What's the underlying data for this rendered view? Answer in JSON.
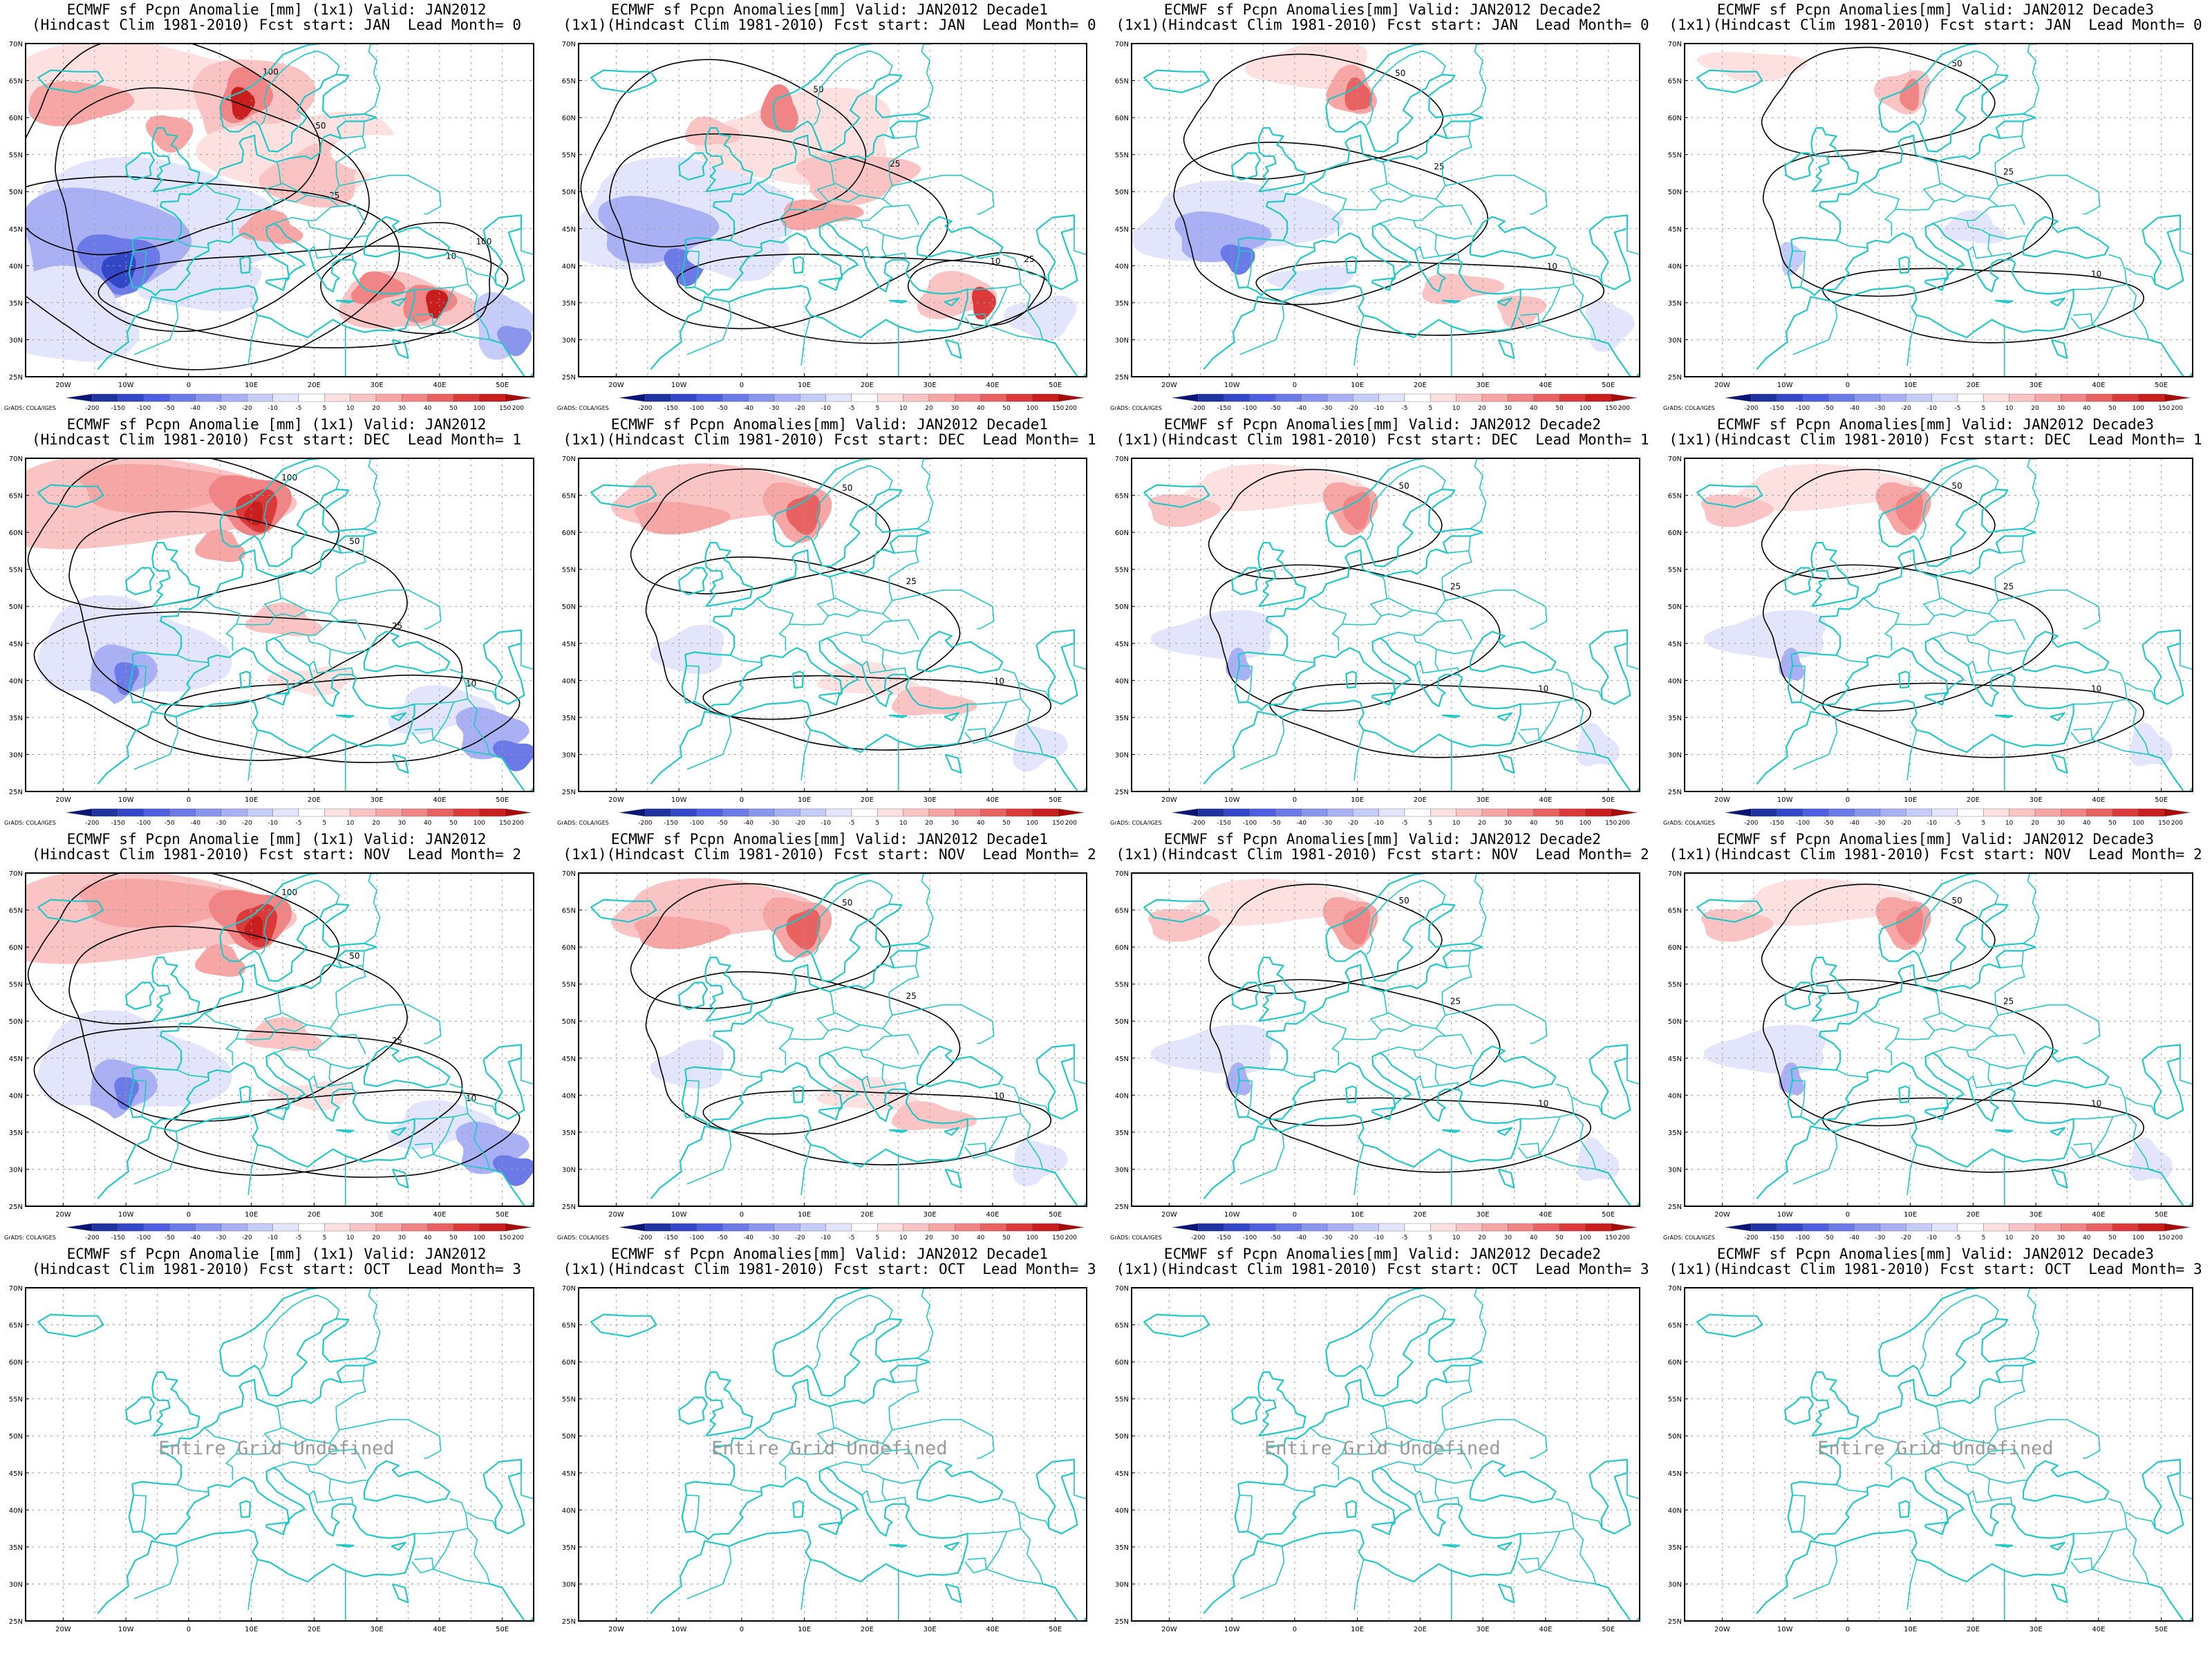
{
  "colorbar": {
    "labels": [
      "-200",
      "-150",
      "-100",
      "-50",
      "-40",
      "-30",
      "-20",
      "-10",
      "-5",
      "5",
      "10",
      "20",
      "30",
      "40",
      "50",
      "100",
      "150",
      "200"
    ],
    "colors": [
      "#0a1478",
      "#1e32a0",
      "#3246c8",
      "#4d5fe0",
      "#6c7ae8",
      "#8a96ee",
      "#a9b1f4",
      "#c6ccf8",
      "#e2e5fc",
      "#ffffff",
      "#fde0e0",
      "#fbc4c4",
      "#f7a6a6",
      "#f18484",
      "#e96262",
      "#dc3a3a",
      "#c81e1e",
      "#a80a0a"
    ],
    "credit": "GrADS: COLA/IGES"
  },
  "axes": {
    "lon_labels": [
      "20W",
      "10W",
      "0",
      "10E",
      "20E",
      "30E",
      "40E",
      "50E"
    ],
    "lat_labels": [
      "70N",
      "65N",
      "60N",
      "55N",
      "50N",
      "45N",
      "40N",
      "35N",
      "30N",
      "25N"
    ]
  },
  "colors": {
    "coast": "#20c8c8",
    "contour": "#000000",
    "grid": "#a0a0a0"
  },
  "undefined_text": "Entire Grid Undefined",
  "panels": [
    {
      "line1": "ECMWF sf Pcpn Anomalie [mm] (1x1) Valid: JAN2012",
      "line2": "(Hindcast Clim 1981-2010) Fcst start: JAN  Lead Month= 0",
      "fill": "strong_mixed"
    },
    {
      "line1": "ECMWF sf Pcpn Anomalies[mm] Valid: JAN2012 Decade1",
      "line2": "(1x1)(Hindcast Clim 1981-2010) Fcst start: JAN  Lead Month= 0",
      "fill": "mixed"
    },
    {
      "line1": "ECMWF sf Pcpn Anomalies[mm] Valid: JAN2012 Decade2",
      "line2": "(1x1)(Hindcast Clim 1981-2010) Fcst start: JAN  Lead Month= 0",
      "fill": "mixed_light"
    },
    {
      "line1": "ECMWF sf Pcpn Anomalies[mm] Valid: JAN2012 Decade3",
      "line2": "(1x1)(Hindcast Clim 1981-2010) Fcst start: JAN  Lead Month= 0",
      "fill": "light"
    },
    {
      "line1": "ECMWF sf Pcpn Anomalie [mm] (1x1) Valid: JAN2012",
      "line2": "(Hindcast Clim 1981-2010) Fcst start: DEC  Lead Month= 1",
      "fill": "strong_north"
    },
    {
      "line1": "ECMWF sf Pcpn Anomalies[mm] Valid: JAN2012 Decade1",
      "line2": "(1x1)(Hindcast Clim 1981-2010) Fcst start: DEC  Lead Month= 1",
      "fill": "north"
    },
    {
      "line1": "ECMWF sf Pcpn Anomalies[mm] Valid: JAN2012 Decade2",
      "line2": "(1x1)(Hindcast Clim 1981-2010) Fcst start: DEC  Lead Month= 1",
      "fill": "north_light"
    },
    {
      "line1": "ECMWF sf Pcpn Anomalies[mm] Valid: JAN2012 Decade3",
      "line2": "(1x1)(Hindcast Clim 1981-2010) Fcst start: DEC  Lead Month= 1",
      "fill": "north_light"
    },
    {
      "line1": "ECMWF sf Pcpn Anomalie [mm] (1x1) Valid: JAN2012",
      "line2": "(Hindcast Clim 1981-2010) Fcst start: NOV  Lead Month= 2",
      "fill": "strong_north"
    },
    {
      "line1": "ECMWF sf Pcpn Anomalies[mm] Valid: JAN2012 Decade1",
      "line2": "(1x1)(Hindcast Clim 1981-2010) Fcst start: NOV  Lead Month= 2",
      "fill": "north"
    },
    {
      "line1": "ECMWF sf Pcpn Anomalies[mm] Valid: JAN2012 Decade2",
      "line2": "(1x1)(Hindcast Clim 1981-2010) Fcst start: NOV  Lead Month= 2",
      "fill": "north_light"
    },
    {
      "line1": "ECMWF sf Pcpn Anomalies[mm] Valid: JAN2012 Decade3",
      "line2": "(1x1)(Hindcast Clim 1981-2010) Fcst start: NOV  Lead Month= 2",
      "fill": "north_light"
    },
    {
      "line1": "ECMWF sf Pcpn Anomalie [mm] (1x1) Valid: JAN2012",
      "line2": "(Hindcast Clim 1981-2010) Fcst start: OCT  Lead Month= 3",
      "fill": "undefined"
    },
    {
      "line1": "ECMWF sf Pcpn Anomalies[mm] Valid: JAN2012 Decade1",
      "line2": "(1x1)(Hindcast Clim 1981-2010) Fcst start: OCT  Lead Month= 3",
      "fill": "undefined"
    },
    {
      "line1": "ECMWF sf Pcpn Anomalies[mm] Valid: JAN2012 Decade2",
      "line2": "(1x1)(Hindcast Clim 1981-2010) Fcst start: OCT  Lead Month= 3",
      "fill": "undefined"
    },
    {
      "line1": "ECMWF sf Pcpn Anomalies[mm] Valid: JAN2012 Decade3",
      "line2": "(1x1)(Hindcast Clim 1981-2010) Fcst start: OCT  Lead Month= 3",
      "fill": "undefined"
    }
  ]
}
